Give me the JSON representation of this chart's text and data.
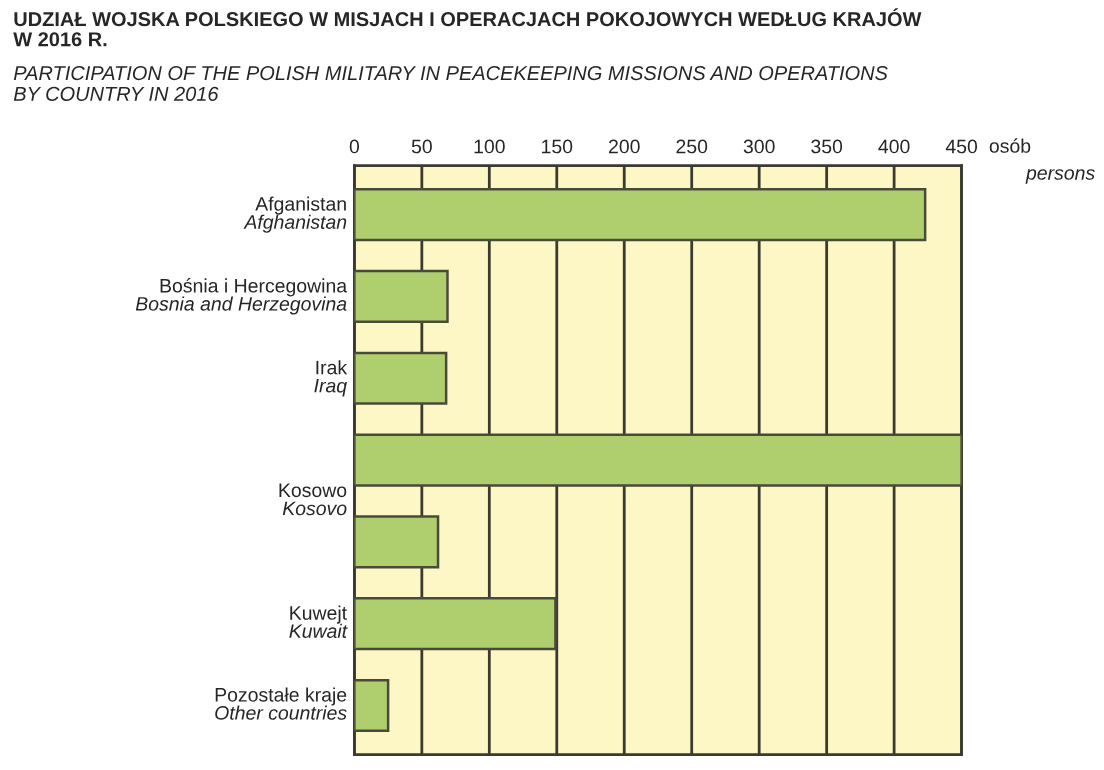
{
  "chart_data": {
    "type": "bar",
    "orientation": "horizontal",
    "title": "UDZIAŁ WOJSKA POLSKIEGO W MISJACH I OPERACJACH POKOJOWYCH WEDŁUG KRAJÓW\nW 2016 R.",
    "subtitle": "PARTICIPATION OF THE POLISH MILITARY IN PEACEKEEPING MISSIONS AND OPERATIONS\nBY COUNTRY IN 2016",
    "xlabel": "osób\npersons",
    "categories": [
      "Afganistan\nAfghanistan",
      "Bośnia i Hercegowina\nBosnia and Herzegovina",
      "Irak\nIraq",
      "Kosowo\nKosovo",
      null,
      "Kuwejt\nKuwait",
      "Pozostałe kraje\nOther countries"
    ],
    "values": [
      423,
      69,
      68,
      450,
      62,
      149,
      25
    ],
    "color": "#afcf6f",
    "xlim": [
      0,
      450
    ],
    "xticks": [
      0,
      50,
      100,
      150,
      200,
      250,
      300,
      350,
      400,
      450
    ],
    "grid": "x"
  }
}
